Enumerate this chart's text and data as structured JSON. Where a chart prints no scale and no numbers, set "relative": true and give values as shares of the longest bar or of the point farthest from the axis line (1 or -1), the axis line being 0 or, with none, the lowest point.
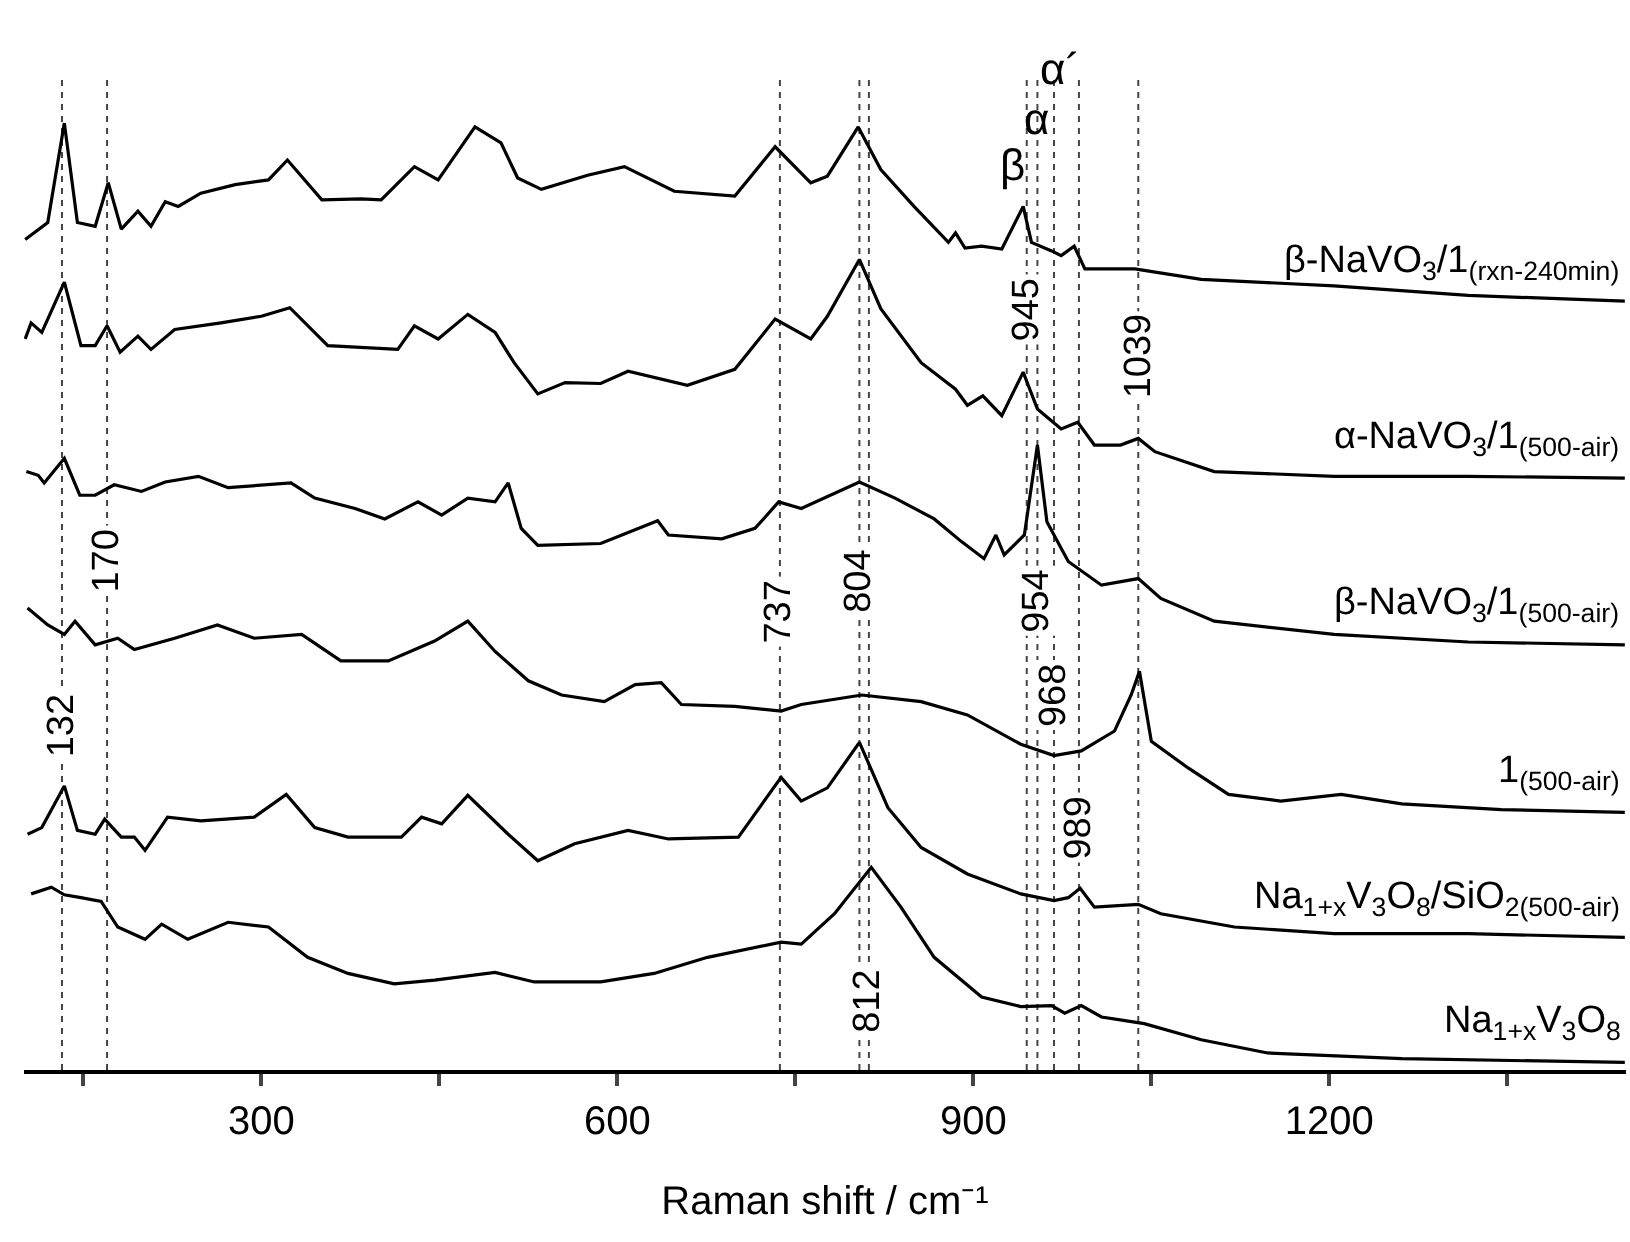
{
  "chart_data": {
    "type": "line",
    "relative": true,
    "xlabel": "Raman shift / cm⁻¹",
    "xlim": [
      100,
      1450
    ],
    "xticks": [
      {
        "value": 150,
        "label": null
      },
      300,
      {
        "value": 450,
        "label": null
      },
      600,
      {
        "value": 750,
        "label": null
      },
      900,
      {
        "value": 1050,
        "label": null
      },
      1200,
      {
        "value": 1350,
        "label": null
      }
    ],
    "grid": false,
    "legend": false,
    "tick_labels": "x",
    "series": [
      {
        "name": "β-NaVO$_{3}$/1$_{(rxn-240min)}$",
        "color": "#000000",
        "x": [
          101,
          120,
          134,
          145,
          160,
          171,
          182,
          196,
          207,
          219,
          230,
          249,
          278,
          306,
          322,
          351,
          384,
          401,
          429,
          449,
          480,
          502,
          516,
          536,
          575,
          606,
          648,
          699,
          733,
          763,
          777,
          803,
          822,
          850,
          879,
          885,
          893,
          907,
          924,
          942,
          949,
          966,
          974,
          985,
          994,
          1036,
          1092,
          1204,
          1317,
          1449
        ],
        "values": [
          0.877,
          0.895,
          1.0,
          0.895,
          0.891,
          0.937,
          0.888,
          0.907,
          0.891,
          0.917,
          0.912,
          0.926,
          0.935,
          0.94,
          0.961,
          0.919,
          0.92,
          0.919,
          0.954,
          0.94,
          0.996,
          0.979,
          0.942,
          0.93,
          0.945,
          0.954,
          0.928,
          0.923,
          0.975,
          0.937,
          0.944,
          0.996,
          0.951,
          0.912,
          0.874,
          0.884,
          0.868,
          0.87,
          0.867,
          0.912,
          0.874,
          0.865,
          0.86,
          0.87,
          0.846,
          0.846,
          0.835,
          0.828,
          0.818,
          0.812
        ]
      },
      {
        "name": "α-NaVO$_{3}$/1$_{(500-air)}$",
        "color": "#000000",
        "x": [
          101,
          106,
          115,
          134,
          148,
          160,
          170,
          181,
          196,
          207,
          227,
          266,
          300,
          324,
          356,
          415,
          429,
          449,
          474,
          497,
          513,
          533,
          556,
          586,
          609,
          659,
          699,
          733,
          763,
          777,
          804,
          822,
          856,
          885,
          895,
          908,
          924,
          942,
          954,
          974,
          988,
          1002,
          1024,
          1039,
          1053,
          1103,
          1204,
          1317,
          1449
        ],
        "values": [
          0.772,
          0.789,
          0.779,
          0.832,
          0.765,
          0.765,
          0.786,
          0.758,
          0.775,
          0.761,
          0.782,
          0.789,
          0.796,
          0.805,
          0.765,
          0.761,
          0.786,
          0.772,
          0.798,
          0.779,
          0.747,
          0.714,
          0.726,
          0.725,
          0.738,
          0.723,
          0.74,
          0.793,
          0.772,
          0.796,
          0.856,
          0.804,
          0.747,
          0.719,
          0.702,
          0.712,
          0.691,
          0.737,
          0.698,
          0.677,
          0.684,
          0.66,
          0.66,
          0.667,
          0.653,
          0.632,
          0.627,
          0.627,
          0.625
        ]
      },
      {
        "name": "β-NaVO$_{3}$/1$_{(500-air)}$",
        "color": "#000000",
        "x": [
          102,
          112,
          117,
          134,
          147,
          160,
          176,
          199,
          219,
          247,
          272,
          325,
          345,
          379,
          404,
          432,
          452,
          474,
          497,
          508,
          519,
          533,
          586,
          634,
          643,
          688,
          716,
          736,
          755,
          804,
          834,
          867,
          890,
          909,
          919,
          926,
          943,
          954,
          962,
          980,
          1008,
          1039,
          1058,
          1103,
          1204,
          1317,
          1449
        ],
        "values": [
          0.632,
          0.628,
          0.62,
          0.646,
          0.607,
          0.607,
          0.618,
          0.611,
          0.621,
          0.627,
          0.615,
          0.62,
          0.604,
          0.593,
          0.582,
          0.6,
          0.586,
          0.604,
          0.6,
          0.62,
          0.572,
          0.554,
          0.556,
          0.58,
          0.565,
          0.561,
          0.572,
          0.6,
          0.593,
          0.621,
          0.604,
          0.582,
          0.558,
          0.54,
          0.565,
          0.544,
          0.565,
          0.66,
          0.579,
          0.537,
          0.512,
          0.519,
          0.498,
          0.474,
          0.46,
          0.452,
          0.449
        ]
      },
      {
        "name": "1$_{(500-air)}$",
        "color": "#000000",
        "x": [
          103,
          120,
          134,
          143,
          160,
          179,
          193,
          227,
          263,
          294,
          334,
          367,
          407,
          446,
          474,
          497,
          525,
          553,
          589,
          615,
          637,
          654,
          699,
          738,
          755,
          806,
          856,
          895,
          940,
          968,
          991,
          1019,
          1033,
          1040,
          1050,
          1081,
          1115,
          1159,
          1210,
          1261,
          1345,
          1449
        ],
        "values": [
          0.488,
          0.47,
          0.46,
          0.474,
          0.449,
          0.456,
          0.444,
          0.456,
          0.47,
          0.456,
          0.46,
          0.432,
          0.432,
          0.453,
          0.474,
          0.442,
          0.411,
          0.396,
          0.389,
          0.407,
          0.409,
          0.386,
          0.384,
          0.379,
          0.386,
          0.396,
          0.389,
          0.375,
          0.344,
          0.332,
          0.337,
          0.358,
          0.396,
          0.421,
          0.347,
          0.319,
          0.291,
          0.284,
          0.291,
          0.281,
          0.275,
          0.272
        ]
      },
      {
        "name": "Na$_{1+x}$V$_{3}$O$_{8}$/SiO$_{2(500-air)}$",
        "color": "#000000",
        "x": [
          103,
          115,
          134,
          145,
          160,
          168,
          182,
          193,
          202,
          221,
          249,
          294,
          321,
          345,
          373,
          418,
          435,
          452,
          474,
          508,
          533,
          564,
          609,
          643,
          702,
          738,
          755,
          777,
          804,
          828,
          856,
          895,
          940,
          968,
          980,
          990,
          1002,
          1039,
          1058,
          1120,
          1204,
          1317,
          1449
        ],
        "values": [
          0.249,
          0.256,
          0.3,
          0.253,
          0.249,
          0.265,
          0.246,
          0.246,
          0.232,
          0.267,
          0.263,
          0.267,
          0.291,
          0.256,
          0.246,
          0.246,
          0.267,
          0.26,
          0.29,
          0.249,
          0.221,
          0.239,
          0.253,
          0.244,
          0.246,
          0.309,
          0.284,
          0.298,
          0.346,
          0.277,
          0.235,
          0.207,
          0.186,
          0.179,
          0.182,
          0.192,
          0.172,
          0.175,
          0.165,
          0.151,
          0.144,
          0.144,
          0.14
        ]
      },
      {
        "name": "Na$_{1+x}$V$_{3}$O$_{8}$",
        "color": "#000000",
        "x": [
          106,
          123,
          134,
          148,
          165,
          179,
          202,
          216,
          238,
          272,
          306,
          339,
          373,
          412,
          446,
          497,
          530,
          586,
          631,
          676,
          738,
          755,
          783,
          814,
          839,
          867,
          907,
          940,
          966,
          977,
          991,
          1008,
          1044,
          1092,
          1148,
          1261,
          1449
        ],
        "values": [
          0.186,
          0.193,
          0.185,
          0.182,
          0.178,
          0.151,
          0.138,
          0.154,
          0.138,
          0.156,
          0.151,
          0.119,
          0.102,
          0.091,
          0.095,
          0.103,
          0.093,
          0.093,
          0.102,
          0.119,
          0.135,
          0.133,
          0.165,
          0.214,
          0.172,
          0.119,
          0.077,
          0.067,
          0.068,
          0.06,
          0.068,
          0.056,
          0.049,
          0.032,
          0.018,
          0.012,
          0.008
        ]
      }
    ],
    "ref_lines": [
      {
        "axis": "x",
        "value": 132,
        "label": "132",
        "line_style": "dotted",
        "color": "#444444"
      },
      {
        "axis": "x",
        "value": 170,
        "label": "170",
        "line_style": "dotted",
        "color": "#444444"
      },
      {
        "axis": "x",
        "value": 737,
        "label": "737",
        "line_style": "dotted",
        "color": "#444444"
      },
      {
        "axis": "x",
        "value": 804,
        "label": "804",
        "line_style": "dotted",
        "color": "#444444"
      },
      {
        "axis": "x",
        "value": 812,
        "label": "812",
        "line_style": "dotted",
        "color": "#444444"
      },
      {
        "axis": "x",
        "value": 945,
        "label": "945",
        "line_style": "dotted",
        "color": "#444444"
      },
      {
        "axis": "x",
        "value": 954,
        "label": "954",
        "line_style": "dotted",
        "color": "#444444"
      },
      {
        "axis": "x",
        "value": 968,
        "label": "968",
        "line_style": "dotted",
        "color": "#444444"
      },
      {
        "axis": "x",
        "value": 989,
        "label": "989",
        "line_style": "dotted",
        "color": "#444444"
      },
      {
        "axis": "x",
        "value": 1039,
        "label": "1039",
        "line_style": "dotted",
        "color": "#444444"
      }
    ],
    "annotations": [
      "β",
      "α",
      "α´"
    ]
  }
}
